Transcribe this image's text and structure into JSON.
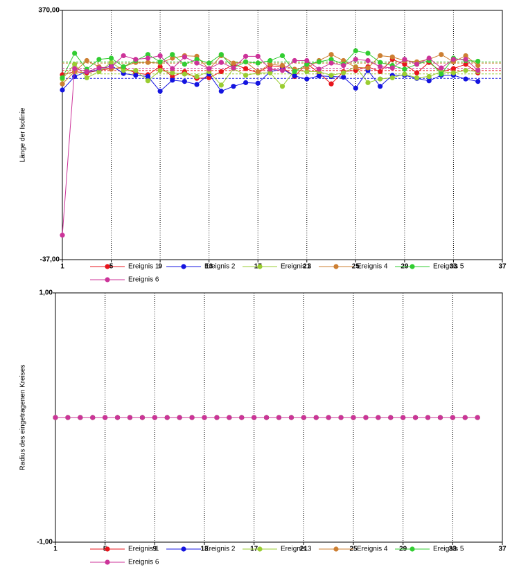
{
  "chart_data": [
    {
      "type": "line",
      "ylabel": "Länge der Isolinie",
      "x": [
        1,
        2,
        3,
        4,
        5,
        6,
        7,
        8,
        9,
        10,
        11,
        12,
        13,
        14,
        15,
        16,
        17,
        18,
        19,
        20,
        21,
        22,
        23,
        24,
        25,
        26,
        27,
        28,
        29,
        30,
        31,
        32,
        33,
        34,
        35
      ],
      "xlim": [
        1,
        37
      ],
      "xticks": [
        1,
        5,
        9,
        13,
        17,
        21,
        25,
        29,
        33,
        37
      ],
      "ylim": [
        -37,
        370
      ],
      "yticks": [
        {
          "value": 370,
          "label": "370,00"
        },
        {
          "value": -37,
          "label": "-37,00"
        }
      ],
      "grid": "x",
      "mean_lines": true,
      "series": [
        {
          "name": "Ereignis 1",
          "color": "#e8141c",
          "values": [
            265,
            270,
            268,
            272,
            275,
            276,
            268,
            265,
            278,
            262,
            270,
            259,
            260,
            270,
            282,
            275,
            268,
            280,
            277,
            262,
            283,
            268,
            250,
            270,
            272,
            278,
            270,
            290,
            282,
            268,
            285,
            270,
            275,
            282,
            268
          ]
        },
        {
          "name": "Ereignis 2",
          "color": "#1414e0",
          "values": [
            240,
            262,
            270,
            272,
            280,
            267,
            264,
            262,
            238,
            256,
            254,
            249,
            266,
            238,
            246,
            252,
            251,
            270,
            274,
            263,
            258,
            263,
            262,
            261,
            243,
            272,
            246,
            264,
            264,
            259,
            255,
            264,
            264,
            258,
            254
          ]
        },
        {
          "name": "Ereignis 3",
          "color": "#9acd32",
          "values": [
            258,
            282,
            260,
            270,
            285,
            272,
            272,
            255,
            272,
            268,
            266,
            262,
            270,
            248,
            275,
            264,
            268,
            268,
            246,
            272,
            270,
            270,
            264,
            268,
            278,
            252,
            258,
            260,
            266,
            260,
            262,
            270,
            268,
            272,
            270
          ]
        },
        {
          "name": "Ereignis 4",
          "color": "#cd7f32",
          "values": [
            250,
            270,
            288,
            278,
            274,
            278,
            285,
            285,
            284,
            292,
            296,
            295,
            274,
            296,
            284,
            286,
            270,
            282,
            280,
            274,
            276,
            288,
            298,
            288,
            277,
            276,
            296,
            294,
            288,
            286,
            290,
            298,
            286,
            296,
            280
          ]
        },
        {
          "name": "Ereignis 5",
          "color": "#32cd32",
          "values": [
            260,
            300,
            274,
            290,
            292,
            278,
            288,
            298,
            286,
            298,
            282,
            290,
            284,
            298,
            276,
            286,
            284,
            288,
            296,
            270,
            282,
            286,
            290,
            282,
            304,
            300,
            285,
            280,
            274,
            282,
            288,
            266,
            292,
            288,
            287
          ]
        },
        {
          "name": "Ereignis 6",
          "color": "#cc3399",
          "values": [
            3,
            275,
            270,
            276,
            278,
            296,
            290,
            292,
            296,
            275,
            294,
            284,
            275,
            285,
            276,
            295,
            295,
            274,
            272,
            288,
            288,
            274,
            284,
            280,
            290,
            288,
            278,
            276,
            290,
            282,
            292,
            276,
            290,
            290,
            272
          ]
        }
      ]
    },
    {
      "type": "line",
      "ylabel": "Radius des eingetragenen Kreises",
      "x": [
        1,
        2,
        3,
        4,
        5,
        6,
        7,
        8,
        9,
        10,
        11,
        12,
        13,
        14,
        15,
        16,
        17,
        18,
        19,
        20,
        21,
        22,
        23,
        24,
        25,
        26,
        27,
        28,
        29,
        30,
        31,
        32,
        33,
        34,
        35
      ],
      "xlim": [
        1,
        37
      ],
      "xticks": [
        1,
        5,
        9,
        13,
        17,
        21,
        25,
        29,
        33,
        37
      ],
      "ylim": [
        -1,
        1
      ],
      "yticks": [
        {
          "value": 1,
          "label": "1,00"
        },
        {
          "value": -1,
          "label": "-1,00"
        }
      ],
      "grid": "x",
      "mean_lines": false,
      "series": [
        {
          "name": "Ereignis 1",
          "color": "#e8141c",
          "values": [
            0,
            0,
            0,
            0,
            0,
            0,
            0,
            0,
            0,
            0,
            0,
            0,
            0,
            0,
            0,
            0,
            0,
            0,
            0,
            0,
            0,
            0,
            0,
            0,
            0,
            0,
            0,
            0,
            0,
            0,
            0,
            0,
            0,
            0,
            0
          ]
        },
        {
          "name": "Ereignis 2",
          "color": "#1414e0",
          "values": [
            0,
            0,
            0,
            0,
            0,
            0,
            0,
            0,
            0,
            0,
            0,
            0,
            0,
            0,
            0,
            0,
            0,
            0,
            0,
            0,
            0,
            0,
            0,
            0,
            0,
            0,
            0,
            0,
            0,
            0,
            0,
            0,
            0,
            0,
            0
          ]
        },
        {
          "name": "Ereignis 3",
          "color": "#9acd32",
          "values": [
            0,
            0,
            0,
            0,
            0,
            0,
            0,
            0,
            0,
            0,
            0,
            0,
            0,
            0,
            0,
            0,
            0,
            0,
            0,
            0,
            0,
            0,
            0,
            0,
            0,
            0,
            0,
            0,
            0,
            0,
            0,
            0,
            0,
            0,
            0
          ]
        },
        {
          "name": "Ereignis 4",
          "color": "#cd7f32",
          "values": [
            0,
            0,
            0,
            0,
            0,
            0,
            0,
            0,
            0,
            0,
            0,
            0,
            0,
            0,
            0,
            0,
            0,
            0,
            0,
            0,
            0,
            0,
            0,
            0,
            0,
            0,
            0,
            0,
            0,
            0,
            0,
            0,
            0,
            0,
            0
          ]
        },
        {
          "name": "Ereignis 5",
          "color": "#32cd32",
          "values": [
            0,
            0,
            0,
            0,
            0,
            0,
            0,
            0,
            0,
            0,
            0,
            0,
            0,
            0,
            0,
            0,
            0,
            0,
            0,
            0,
            0,
            0,
            0,
            0,
            0,
            0,
            0,
            0,
            0,
            0,
            0,
            0,
            0,
            0,
            0
          ]
        },
        {
          "name": "Ereignis 6",
          "color": "#cc3399",
          "values": [
            0,
            0,
            0,
            0,
            0,
            0,
            0,
            0,
            0,
            0,
            0,
            0,
            0,
            0,
            0,
            0,
            0,
            0,
            0,
            0,
            0,
            0,
            0,
            0,
            0,
            0,
            0,
            0,
            0,
            0,
            0,
            0,
            0,
            0,
            0
          ]
        }
      ]
    }
  ]
}
